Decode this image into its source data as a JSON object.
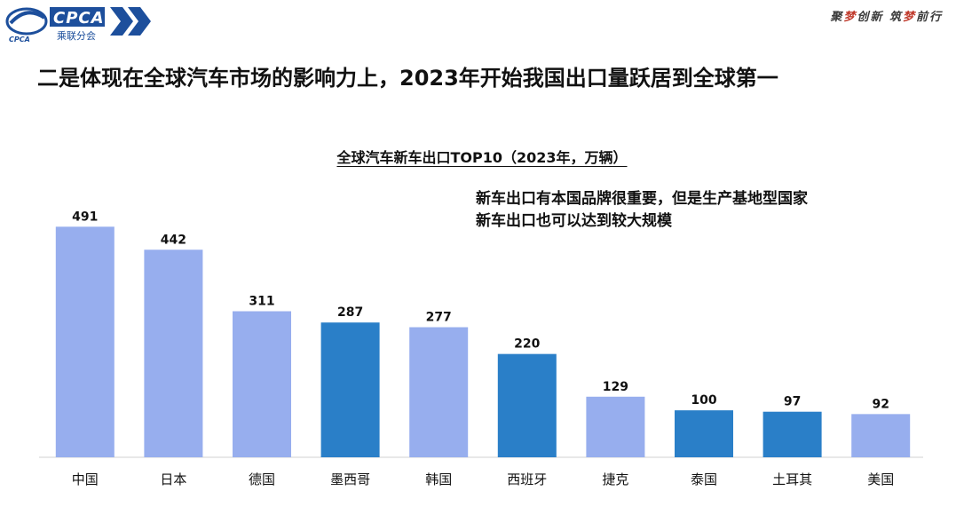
{
  "brand": {
    "name": "CPCA",
    "subtitle": "乘联分会",
    "sub_latin": "CPCA"
  },
  "slogan": {
    "part1": "聚",
    "part2": "梦",
    "part3": "创新 筑",
    "part4": "梦",
    "part5": "前行"
  },
  "headline": "二是体现在全球汽车市场的影响力上，2023年开始我国出口量跃居到全球第一",
  "annotation": {
    "line1": "新车出口有本国品牌很重要，但是生产基地型国家",
    "line2": "新车出口也可以达到较大规模"
  },
  "chart_data": {
    "type": "bar",
    "title": "全球汽车新车出口TOP10（2023年，万辆）",
    "categories": [
      "中国",
      "日本",
      "德国",
      "墨西哥",
      "韩国",
      "西班牙",
      "捷克",
      "泰国",
      "土耳其",
      "美国"
    ],
    "values": [
      491,
      442,
      311,
      287,
      277,
      220,
      129,
      100,
      97,
      92
    ],
    "highlight": [
      false,
      false,
      false,
      true,
      false,
      true,
      false,
      true,
      true,
      false
    ],
    "colors": {
      "default": "#97aeee",
      "highlight": "#2a7fc8"
    },
    "ylim": [
      0,
      520
    ],
    "grid": false,
    "xlabel": "",
    "ylabel": ""
  }
}
